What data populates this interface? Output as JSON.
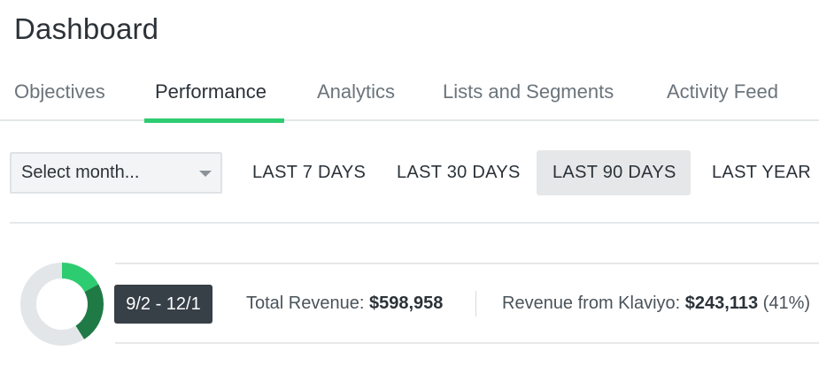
{
  "header": {
    "title": "Dashboard"
  },
  "tabs": [
    {
      "label": "Objectives",
      "active": false
    },
    {
      "label": "Performance",
      "active": true
    },
    {
      "label": "Analytics",
      "active": false
    },
    {
      "label": "Lists and Segments",
      "active": false
    },
    {
      "label": "Activity Feed",
      "active": false
    }
  ],
  "toolbar": {
    "month_select": {
      "value": "Select month...",
      "icon": "chevron-down-icon"
    },
    "ranges": [
      {
        "label": "LAST 7 DAYS",
        "active": false
      },
      {
        "label": "LAST 30 DAYS",
        "active": false
      },
      {
        "label": "LAST 90 DAYS",
        "active": true
      },
      {
        "label": "LAST YEAR",
        "active": false
      }
    ]
  },
  "summary": {
    "date_range": "9/2 - 12/1",
    "total_revenue_label": "Total Revenue:",
    "total_revenue_value": "$598,958",
    "klaviyo_revenue_label": "Revenue from Klaviyo:",
    "klaviyo_revenue_value": "$243,113",
    "klaviyo_revenue_percent": "(41%)",
    "donut": {
      "segments": [
        {
          "fraction": 0.17,
          "color": "#2ecc71"
        },
        {
          "fraction": 0.24,
          "color": "#1f7a45"
        },
        {
          "fraction": 0.59,
          "color": "#e3e6e8"
        }
      ]
    }
  },
  "colors": {
    "accent": "#2ecc71",
    "dark_green": "#1f7a45",
    "badge": "#373f47"
  }
}
